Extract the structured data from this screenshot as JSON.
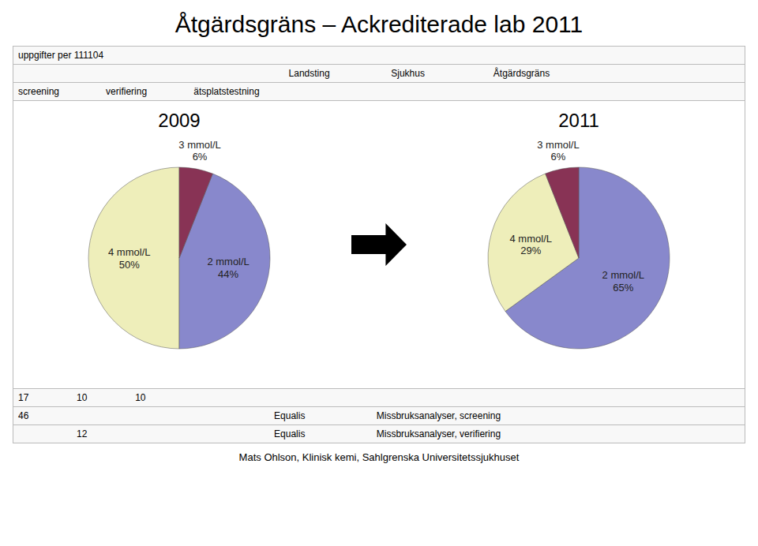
{
  "title": "Åtgärdsgräns – Ackrediterade lab 2011",
  "chart_data": [
    {
      "type": "pie",
      "title": "2009",
      "categories": [
        "4 mmol/L",
        "2 mmol/L",
        "3 mmol/L"
      ],
      "values": [
        50,
        44,
        6
      ],
      "value_labels": [
        "50%",
        "44%",
        "6%"
      ],
      "colors": [
        "#eeeeba",
        "#8888cc",
        "#883355"
      ],
      "data_labels": true
    },
    {
      "type": "pie",
      "title": "2011",
      "categories": [
        "2 mmol/L",
        "4 mmol/L",
        "3 mmol/L"
      ],
      "values": [
        65,
        29,
        6
      ],
      "value_labels": [
        "65%",
        "29%",
        "6%"
      ],
      "colors": [
        "#8888cc",
        "#eeeeba",
        "#883355"
      ],
      "data_labels": true
    }
  ],
  "tables": [
    [
      [
        "uppgifter per 111104",
        null,
        null,
        null,
        null,
        null
      ],
      [
        null,
        null,
        null,
        "Landsting",
        "Sjukhus",
        "Åtgärdsgräns"
      ],
      [
        "screening",
        "verifiering",
        "ätsplatstestning",
        null,
        null,
        null
      ]
    ],
    [
      [
        "17",
        "10",
        "10",
        null,
        null,
        null
      ],
      [
        "46",
        null,
        null,
        "Equalis",
        "Missbruksanalyser, screening",
        null
      ],
      [
        null,
        "12",
        null,
        "Equalis",
        "Missbruksanalyser, verifiering",
        null
      ]
    ]
  ],
  "footer": "Mats Ohlson, Klinisk kemi, Sahlgrenska Universitetssjukhuset"
}
